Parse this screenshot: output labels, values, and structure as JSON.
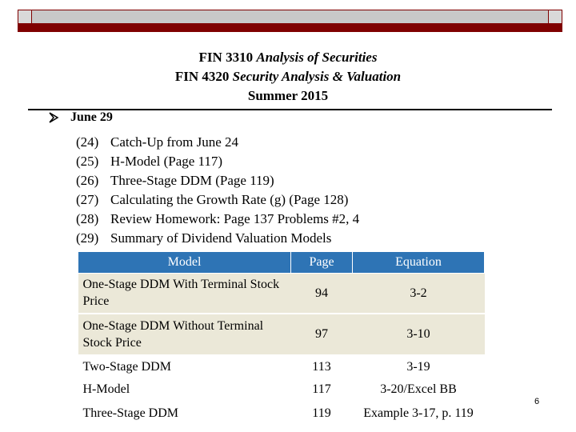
{
  "header": {
    "lines": [
      {
        "course": "FIN 3310",
        "name": "Analysis of Securities"
      },
      {
        "course": "FIN 4320",
        "name": "Security Analysis & Valuation"
      }
    ],
    "term": "Summer 2015"
  },
  "bullet": "June 29",
  "items": [
    {
      "number": "(24)",
      "text": "Catch-Up from June 24"
    },
    {
      "number": "(25)",
      "text": "H-Model (Page 117)"
    },
    {
      "number": "(26)",
      "text": "Three-Stage DDM (Page 119)"
    },
    {
      "number": "(27)",
      "text": "Calculating the Growth Rate (g) (Page 128)"
    },
    {
      "number": "(28)",
      "text": "Review Homework: Page 137 Problems #2, 4"
    },
    {
      "number": "(29)",
      "text": "Summary of Dividend Valuation Models"
    }
  ],
  "table": {
    "columns": [
      "Model",
      "Page",
      "Equation"
    ],
    "rows": [
      [
        "One-Stage DDM With Terminal Stock Price",
        94,
        "3-2"
      ],
      [
        "One-Stage DDM Without Terminal Stock Price",
        97,
        "3-10"
      ],
      [
        "Two-Stage DDM",
        113,
        "3-19"
      ],
      [
        "H-Model",
        117,
        "3-20/Excel BB"
      ],
      [
        "Three-Stage DDM",
        119,
        "Example 3-17, p. 119"
      ]
    ]
  },
  "page_number": 6
}
